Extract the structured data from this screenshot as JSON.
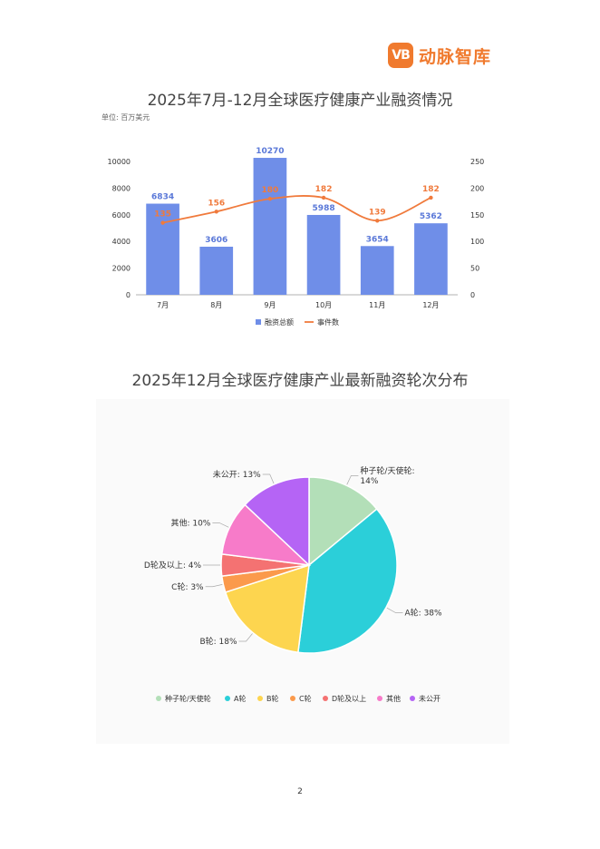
{
  "logo": {
    "mark": "VB",
    "text": "动脉智库"
  },
  "page_number": "2",
  "colors": {
    "brand": "#f07a2e",
    "bar": "#6f8ee8",
    "line": "#f07a3c"
  },
  "chart_data": [
    {
      "type": "bar",
      "title": "2025年7月-12月全球医疗健康产业融资情况",
      "unit_label": "单位: 百万美元",
      "categories": [
        "7月",
        "8月",
        "9月",
        "10月",
        "11月",
        "12月"
      ],
      "series": [
        {
          "name": "融资总额",
          "type": "bar",
          "axis": "left",
          "values": [
            6834,
            3606,
            10270,
            5988,
            3654,
            5362
          ],
          "labels": [
            "6834",
            "3606",
            "10270",
            "5988",
            "3654",
            "5362"
          ]
        },
        {
          "name": "事件数",
          "type": "line",
          "axis": "right",
          "values": [
            135,
            156,
            180,
            182,
            139,
            182
          ],
          "labels": [
            "135",
            "156",
            "180",
            "182",
            "139",
            "182"
          ]
        }
      ],
      "ylim_left": [
        0,
        10000
      ],
      "yticks_left": [
        "0",
        "2000",
        "4000",
        "6000",
        "8000",
        "10000"
      ],
      "ylim_right": [
        0,
        250
      ],
      "yticks_right": [
        "0",
        "50",
        "100",
        "150",
        "200",
        "250"
      ],
      "legend": "bottom",
      "grid": false
    },
    {
      "type": "pie",
      "title": "2025年12月全球医疗健康产业最新融资轮次分布",
      "slices": [
        {
          "name": "种子轮/天使轮",
          "value": 14,
          "label_lines": [
            "种子轮/天使轮:",
            "14%"
          ],
          "color": "#b3dfb8"
        },
        {
          "name": "A轮",
          "value": 38,
          "label_lines": [
            "A轮: 38%"
          ],
          "color": "#2bcfd9"
        },
        {
          "name": "B轮",
          "value": 18,
          "label_lines": [
            "B轮: 18%"
          ],
          "color": "#fdd54f"
        },
        {
          "name": "C轮",
          "value": 3,
          "label_lines": [
            "C轮: 3%"
          ],
          "color": "#fb9a4c"
        },
        {
          "name": "D轮及以上",
          "value": 4,
          "label_lines": [
            "D轮及以上: 4%"
          ],
          "color": "#f47272"
        },
        {
          "name": "其他",
          "value": 10,
          "label_lines": [
            "其他: 10%"
          ],
          "color": "#f77bc9"
        },
        {
          "name": "未公开",
          "value": 13,
          "label_lines": [
            "未公开: 13%"
          ],
          "color": "#b564f5"
        }
      ],
      "legend": "bottom"
    }
  ]
}
